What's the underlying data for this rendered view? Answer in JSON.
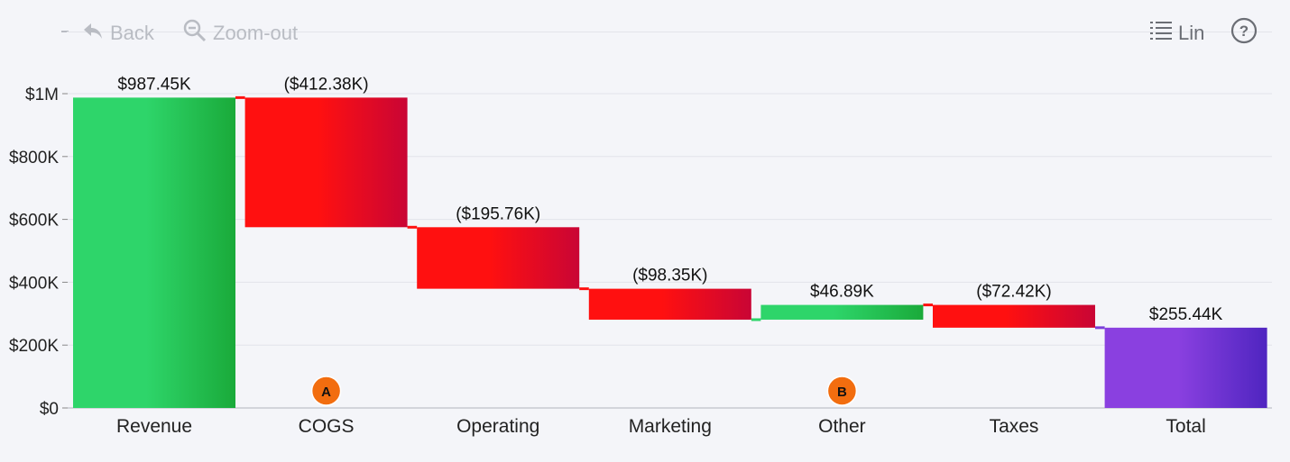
{
  "toolbar": {
    "back_label": "Back",
    "zoom_out_label": "Zoom-out",
    "scale_label": "Lin",
    "help_label": "?"
  },
  "colors": {
    "increase": "#2ed56a",
    "decrease": "#ff1010",
    "total": "#7a3fd8"
  },
  "chart_data": {
    "type": "bar",
    "subtype": "waterfall",
    "categories": [
      "Revenue",
      "COGS",
      "Operating",
      "Marketing",
      "Other",
      "Taxes",
      "Total"
    ],
    "values": [
      987450,
      -412380,
      -195760,
      -98350,
      46890,
      -72420,
      255440
    ],
    "kinds": [
      "increase",
      "decrease",
      "decrease",
      "decrease",
      "increase",
      "decrease",
      "total"
    ],
    "data_labels": [
      "$987.45K",
      "($412.38K)",
      "($195.76K)",
      "($98.35K)",
      "$46.89K",
      "($72.42K)",
      "$255.44K"
    ],
    "y_ticks": [
      {
        "value": 0,
        "label": "$0"
      },
      {
        "value": 200000,
        "label": "$200K"
      },
      {
        "value": 400000,
        "label": "$400K"
      },
      {
        "value": 600000,
        "label": "$600K"
      },
      {
        "value": 800000,
        "label": "$800K"
      },
      {
        "value": 1000000,
        "label": "$1M"
      }
    ],
    "ylim": [
      0,
      1000000
    ],
    "grid": true,
    "annotations": [
      {
        "category": "COGS",
        "label": "A"
      },
      {
        "category": "Other",
        "label": "B"
      }
    ]
  }
}
